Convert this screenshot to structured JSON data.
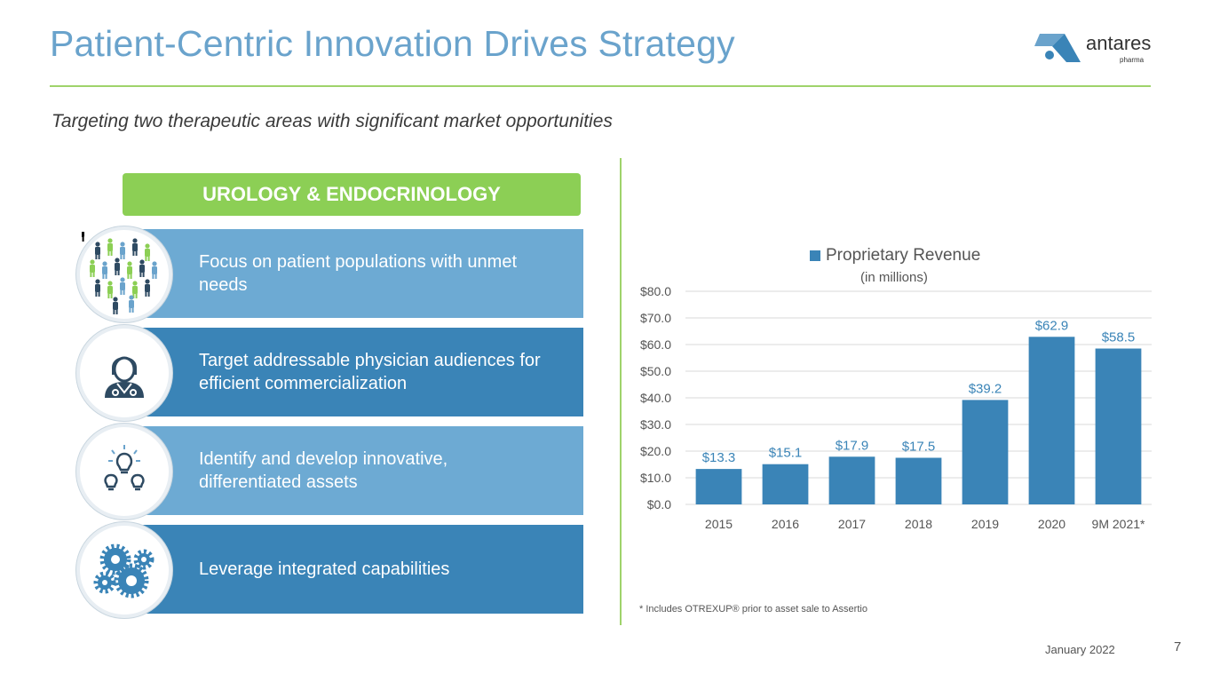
{
  "header": {
    "title": "Patient-Centric Innovation Drives Strategy",
    "logo": {
      "word": "antares",
      "sub": "pharma"
    }
  },
  "subtitle": "Targeting two therapeutic areas with significant market opportunities",
  "category_label": "UROLOGY & ENDOCRINOLOGY",
  "strategies": [
    {
      "text": "Focus on patient populations with unmet needs",
      "icon": "people-icon"
    },
    {
      "text": "Target addressable physician audiences for efficient commercialization",
      "icon": "physician-icon"
    },
    {
      "text": "Identify and develop innovative, differentiated assets",
      "icon": "lightbulb-icon"
    },
    {
      "text": "Leverage integrated capabilities",
      "icon": "gears-icon"
    }
  ],
  "chart_data": {
    "type": "bar",
    "title": "",
    "legend": "Proprietary Revenue",
    "legend_unit": "(in millions)",
    "categories": [
      "2015",
      "2016",
      "2017",
      "2018",
      "2019",
      "2020",
      "9M 2021*"
    ],
    "series": [
      {
        "name": "Proprietary Revenue",
        "values": [
          13.3,
          15.1,
          17.9,
          17.5,
          39.2,
          62.9,
          58.5
        ]
      }
    ],
    "data_labels": [
      "$13.3",
      "$15.1",
      "$17.9",
      "$17.5",
      "$39.2",
      "$62.9",
      "$58.5"
    ],
    "y_ticks": [
      "$0.0",
      "$10.0",
      "$20.0",
      "$30.0",
      "$40.0",
      "$50.0",
      "$60.0",
      "$70.0",
      "$80.0"
    ],
    "ylim": [
      0,
      80
    ],
    "grid": true,
    "legend_position": "top",
    "colors": {
      "bar": "#3a84b7",
      "label": "#3a84b7",
      "grid": "#d9d9d9"
    }
  },
  "footnote": "* Includes OTREXUP® prior to asset sale to Assertio",
  "footer": {
    "date": "January 2022",
    "page": "7"
  }
}
